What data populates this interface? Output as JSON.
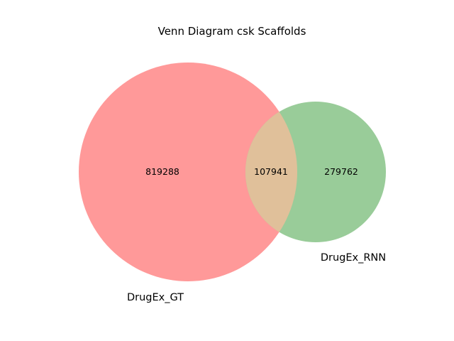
{
  "title": "Venn Diagram csk Scaffolds",
  "sets": [
    {
      "name": "DrugEx_GT",
      "only_count": "819288",
      "color": "#ff9999"
    },
    {
      "name": "DrugEx_RNN",
      "only_count": "279762",
      "color": "#99cc99"
    }
  ],
  "intersection": {
    "count": "107941",
    "color": "#e0c09a"
  }
}
